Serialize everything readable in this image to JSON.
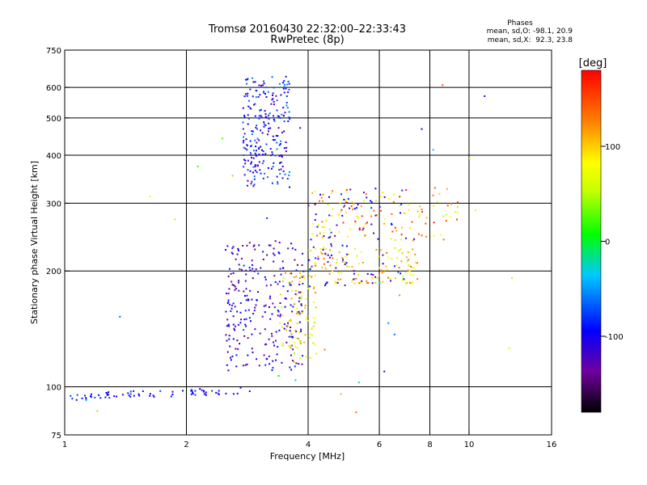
{
  "chart_data": {
    "type": "scatter",
    "title": "Tromsø 20160430 22:32:00–22:33:43",
    "subtitle": "RwPretec (8p)",
    "xlabel": "Frequency [MHz]",
    "ylabel": "Stationary phase Virtual Height [km]",
    "x_scale": "log",
    "y_scale": "log",
    "xlim": [
      1,
      16
    ],
    "ylim": [
      75,
      750
    ],
    "x_ticks": [
      1,
      2,
      4,
      6,
      8,
      10,
      16
    ],
    "y_ticks": [
      75,
      100,
      200,
      300,
      400,
      500,
      600,
      750
    ],
    "x_grid": [
      2,
      4,
      6,
      8,
      10
    ],
    "y_grid": [
      100,
      200,
      300,
      400,
      500,
      600
    ],
    "grid": true,
    "stats": {
      "header": "Phases",
      "line_o": "mean, sd,O: -98.1, 20.9",
      "line_x": "mean, sd,X:  92.3, 23.8"
    },
    "colorbar": {
      "label": "[deg]",
      "ticks": [
        {
          "value": 100,
          "label": "100"
        },
        {
          "value": 0,
          "label": "0"
        },
        {
          "value": -100,
          "label": "-100"
        }
      ],
      "range": [
        -180,
        180
      ]
    },
    "clusters": [
      {
        "name": "",
        "count": 70,
        "f": [
          1.0,
          2.9
        ],
        "h": [
          91,
          100
        ],
        "phase": [
          -120,
          -70
        ],
        "curve": "low"
      },
      {
        "name": "",
        "count": 240,
        "f": [
          2.75,
          3.6
        ],
        "h": [
          330,
          640
        ],
        "phase": [
          -130,
          -55
        ]
      },
      {
        "name": "",
        "count": 260,
        "f": [
          2.5,
          3.9
        ],
        "h": [
          110,
          240
        ],
        "phase": [
          -150,
          -80
        ]
      },
      {
        "name": "",
        "count": 90,
        "f": [
          3.4,
          4.2
        ],
        "h": [
          115,
          200
        ],
        "phase": [
          40,
          130
        ]
      },
      {
        "name": "",
        "count": 120,
        "f": [
          4.0,
          7.5
        ],
        "h": [
          185,
          230
        ],
        "phase": [
          50,
          140
        ]
      },
      {
        "name": "",
        "count": 120,
        "f": [
          4.0,
          9.5
        ],
        "h": [
          240,
          330
        ],
        "phase": [
          50,
          170
        ]
      },
      {
        "name": "",
        "count": 90,
        "f": [
          4.0,
          7.0
        ],
        "h": [
          180,
          330
        ],
        "phase": [
          -140,
          -70
        ]
      },
      {
        "name": "",
        "count": 40,
        "f": [
          1.1,
          14
        ],
        "h": [
          80,
          650
        ],
        "phase": [
          -150,
          150
        ]
      }
    ]
  }
}
